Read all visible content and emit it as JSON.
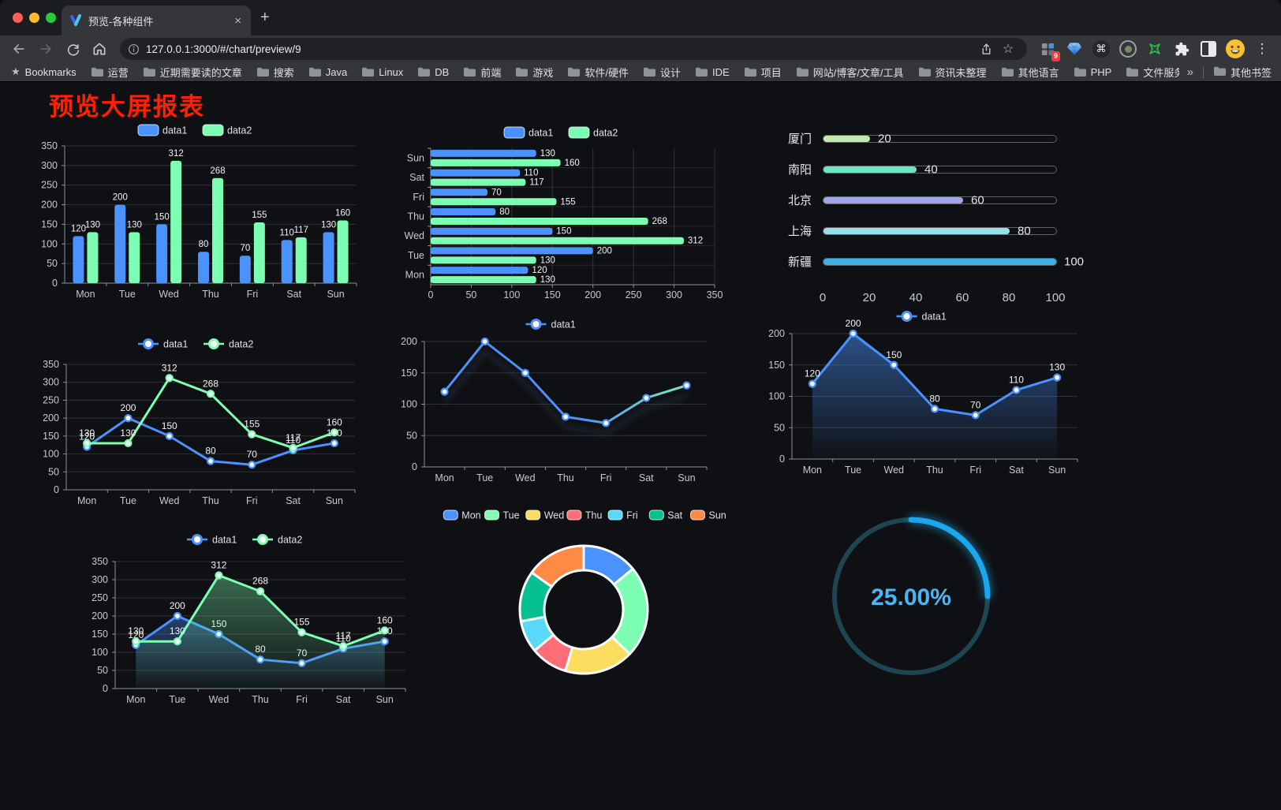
{
  "browser": {
    "tab_title": "预览-各种组件",
    "url": "127.0.0.1:3000/#/chart/preview/9",
    "bookmarks_label": "Bookmarks",
    "bookmarks": [
      "运营",
      "近期需要读的文章",
      "搜索",
      "Java",
      "Linux",
      "DB",
      "前端",
      "游戏",
      "软件/硬件",
      "设计",
      "IDE",
      "项目",
      "网站/博客/文章/工具",
      "资讯未整理",
      "其他语言",
      "PHP",
      "文件服务器"
    ],
    "bookmarks_overflow": "»",
    "other_bookmarks_label": "其他书签",
    "extension_badge": "9",
    "icons": {
      "new_tab": "+",
      "close_tab": "×",
      "menu": "⋮",
      "star": "☆",
      "cmd": "⌘",
      "bookmarks_star": "★"
    }
  },
  "page": {
    "title": "预览大屏报表",
    "title_color": "#ff2000"
  },
  "chart_data": [
    {
      "id": "bar",
      "type": "bar",
      "legend_position": "top",
      "grid": true,
      "categories": [
        "Mon",
        "Tue",
        "Wed",
        "Thu",
        "Fri",
        "Sat",
        "Sun"
      ],
      "series": [
        {
          "name": "data1",
          "color": "#4992ff",
          "values": [
            120,
            200,
            150,
            80,
            70,
            110,
            130
          ]
        },
        {
          "name": "data2",
          "color": "#7cffb2",
          "values": [
            130,
            130,
            312,
            268,
            155,
            117,
            160
          ]
        }
      ],
      "ylim": [
        0,
        350
      ],
      "ystep": 50
    },
    {
      "id": "hbar",
      "type": "hbar",
      "legend_position": "top",
      "grid": true,
      "categories": [
        "Sun",
        "Sat",
        "Fri",
        "Thu",
        "Wed",
        "Tue",
        "Mon"
      ],
      "series": [
        {
          "name": "data1",
          "color": "#4992ff",
          "values": [
            130,
            110,
            70,
            80,
            150,
            200,
            120
          ]
        },
        {
          "name": "data2",
          "color": "#7cffb2",
          "values": [
            160,
            117,
            155,
            268,
            312,
            130,
            130
          ]
        }
      ],
      "xlim": [
        0,
        350
      ],
      "xstep": 50
    },
    {
      "id": "progress",
      "type": "progress",
      "max": 100,
      "ticks": [
        0,
        20,
        40,
        60,
        80,
        100
      ],
      "items": [
        {
          "label": "厦门",
          "value": 20,
          "color": "#c4ebad"
        },
        {
          "label": "南阳",
          "value": 40,
          "color": "#6be6c1"
        },
        {
          "label": "北京",
          "value": 60,
          "color": "#a0a7e6"
        },
        {
          "label": "上海",
          "value": 80,
          "color": "#96dee8"
        },
        {
          "label": "新疆",
          "value": 100,
          "color": "#3fb1e3"
        }
      ]
    },
    {
      "id": "line2",
      "type": "line",
      "legend_position": "top",
      "grid": true,
      "point_labels": true,
      "categories": [
        "Mon",
        "Tue",
        "Wed",
        "Thu",
        "Fri",
        "Sat",
        "Sun"
      ],
      "series": [
        {
          "name": "data1",
          "color": "#4992ff",
          "values": [
            120,
            200,
            150,
            80,
            70,
            110,
            130
          ]
        },
        {
          "name": "data2",
          "color": "#7cffb2",
          "values": [
            130,
            130,
            312,
            268,
            155,
            117,
            160
          ]
        }
      ],
      "ylim": [
        0,
        350
      ],
      "ystep": 50
    },
    {
      "id": "lgrad",
      "type": "line",
      "legend_position": "top",
      "grid": true,
      "point_labels": false,
      "gradient_stroke": [
        "#4992ff",
        "#7cffb2"
      ],
      "shadow": true,
      "categories": [
        "Mon",
        "Tue",
        "Wed",
        "Thu",
        "Fri",
        "Sat",
        "Sun"
      ],
      "series": [
        {
          "name": "data1",
          "color": "#4992ff",
          "values": [
            120,
            200,
            150,
            80,
            70,
            110,
            130
          ]
        }
      ],
      "ylim": [
        0,
        200
      ],
      "ystep": 50
    },
    {
      "id": "larea",
      "type": "line",
      "legend_position": "top",
      "grid": true,
      "point_labels": true,
      "area": true,
      "categories": [
        "Mon",
        "Tue",
        "Wed",
        "Thu",
        "Fri",
        "Sat",
        "Sun"
      ],
      "series": [
        {
          "name": "data1",
          "color": "#4992ff",
          "values": [
            120,
            200,
            150,
            80,
            70,
            110,
            130
          ]
        }
      ],
      "ylim": [
        0,
        200
      ],
      "ystep": 50
    },
    {
      "id": "area2",
      "type": "line",
      "legend_position": "top",
      "grid": true,
      "point_labels": true,
      "area": true,
      "categories": [
        "Mon",
        "Tue",
        "Wed",
        "Thu",
        "Fri",
        "Sat",
        "Sun"
      ],
      "series": [
        {
          "name": "data1",
          "color": "#4992ff",
          "values": [
            120,
            200,
            150,
            80,
            70,
            110,
            130
          ]
        },
        {
          "name": "data2",
          "color": "#7cffb2",
          "values": [
            130,
            130,
            312,
            268,
            155,
            117,
            160
          ]
        }
      ],
      "ylim": [
        0,
        350
      ],
      "ystep": 50
    },
    {
      "id": "pie",
      "type": "pie",
      "donut": true,
      "legend_position": "top",
      "items": [
        {
          "label": "Mon",
          "value": 120,
          "color": "#4992ff"
        },
        {
          "label": "Tue",
          "value": 200,
          "color": "#7cffb2"
        },
        {
          "label": "Wed",
          "value": 150,
          "color": "#fddd60"
        },
        {
          "label": "Thu",
          "value": 80,
          "color": "#ff6e76"
        },
        {
          "label": "Fri",
          "value": 70,
          "color": "#58d9f9"
        },
        {
          "label": "Sat",
          "value": 110,
          "color": "#05c091"
        },
        {
          "label": "Sun",
          "value": 130,
          "color": "#ff8a45"
        }
      ]
    },
    {
      "id": "gauge",
      "type": "gauge",
      "value": 25,
      "max": 100,
      "label": "25.00%",
      "color": "#1aa7ec",
      "track_color": "#1d4652",
      "text_color": "#4ab5f5"
    }
  ]
}
